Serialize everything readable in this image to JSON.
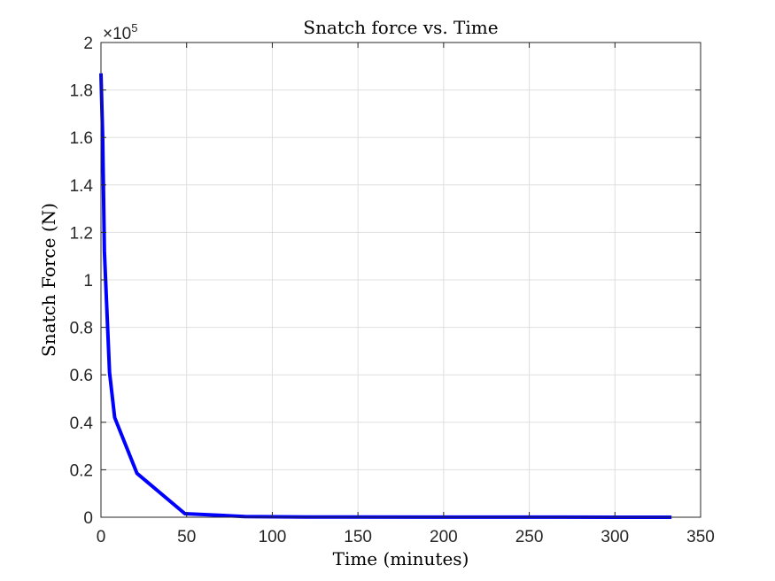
{
  "chart_data": {
    "type": "line",
    "title": "Snatch force vs. Time",
    "xlabel": "Time (minutes)",
    "ylabel": "Snatch Force (N)",
    "xlim": [
      0,
      350
    ],
    "ylim": [
      0,
      200000
    ],
    "x_ticks": [
      0,
      50,
      100,
      150,
      200,
      250,
      300,
      350
    ],
    "x_tick_labels": [
      "0",
      "50",
      "100",
      "150",
      "200",
      "250",
      "300",
      "350"
    ],
    "y_ticks": [
      0,
      20000,
      40000,
      60000,
      80000,
      100000,
      120000,
      140000,
      160000,
      180000,
      200000
    ],
    "y_tick_labels": [
      "0",
      "0.2",
      "0.4",
      "0.6",
      "0.8",
      "1",
      "1.2",
      "1.4",
      "1.6",
      "1.8",
      "2"
    ],
    "y_exponent": {
      "base": "×10",
      "power": "5"
    },
    "grid": true,
    "box": true,
    "series": [
      {
        "color": "#0000ff",
        "x": [
          0,
          1,
          2,
          3,
          5,
          8,
          21,
          49,
          84,
          120,
          200,
          300,
          333
        ],
        "y": [
          187000,
          160000,
          112000,
          95000,
          61000,
          42000,
          18500,
          1500,
          300,
          100,
          50,
          20,
          10
        ]
      }
    ]
  }
}
